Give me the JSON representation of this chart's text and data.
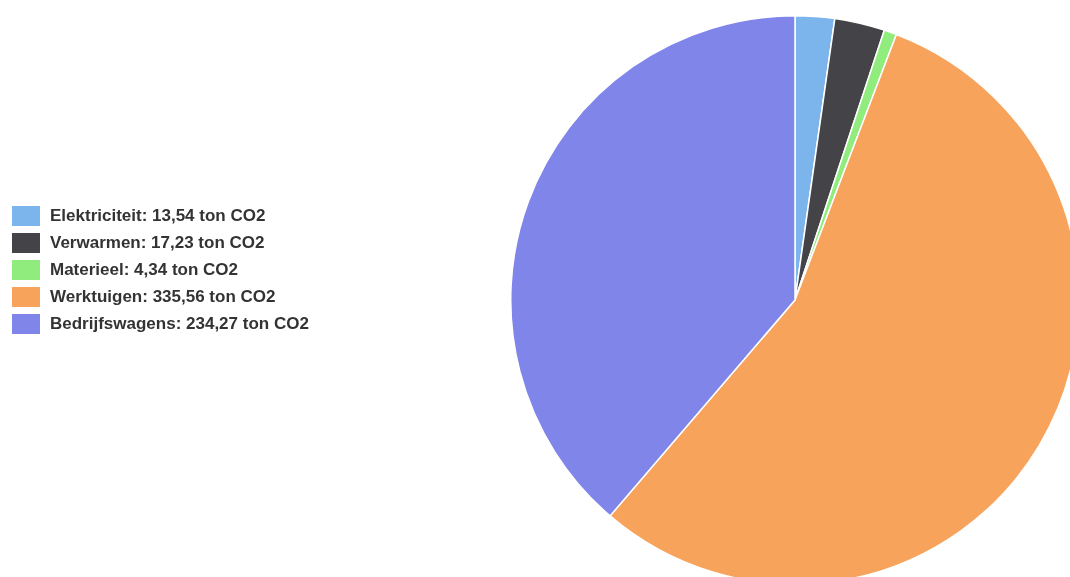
{
  "chart_data": {
    "type": "pie",
    "categories": [
      "Elektriciteit: 13,54 ton CO2",
      "Verwarmen: 17,23 ton CO2",
      "Materieel: 4,34 ton CO2",
      "Werktuigen: 335,56 ton CO2",
      "Bedrijfswagens: 234,27 ton CO2"
    ],
    "values": [
      13.54,
      17.23,
      4.34,
      335.56,
      234.27
    ],
    "colors": [
      "#7cb5ec",
      "#434348",
      "#90ed7d",
      "#f7a35c",
      "#8085e9"
    ],
    "legend": "left"
  }
}
